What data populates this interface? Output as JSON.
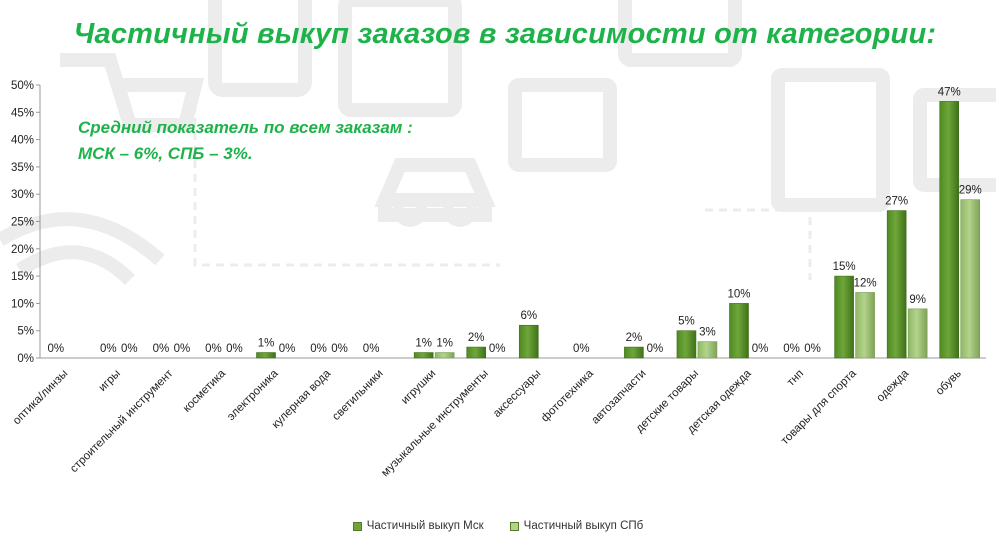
{
  "chart_data": {
    "type": "bar",
    "title": "Частичный выкуп заказов в зависимости от категории:",
    "annotation": [
      "Средний показатель по всем заказам :",
      "МСК – 6%, СПБ – 3%."
    ],
    "categories": [
      "оптика/линзы",
      "игры",
      "строительный инструмент",
      "косметика",
      "электроника",
      "кулерная вода",
      "светильники",
      "игрушки",
      "музыкальные инструменты",
      "аксессуары",
      "фототехника",
      "автозапчасти",
      "детские товары",
      "детская одежда",
      "тнп",
      "товары для спорта",
      "одежда",
      "обувь"
    ],
    "series": [
      {
        "name": "Частичный выкуп Мск",
        "values": [
          0,
          0,
          0,
          0,
          1,
          0,
          0,
          1,
          2,
          6,
          0,
          2,
          5,
          10,
          0,
          15,
          27,
          47
        ],
        "color": "#6fa63a"
      },
      {
        "name": "Частичный выкуп СПб",
        "values": [
          null,
          0,
          0,
          0,
          0,
          0,
          null,
          1,
          0,
          null,
          null,
          0,
          3,
          0,
          0,
          12,
          9,
          29
        ],
        "color": "#b3d38c"
      }
    ],
    "data_labels": {
      "msk": [
        "0%",
        "0%",
        "0%",
        "0%",
        "1%",
        "0%",
        "0%",
        "1%",
        "2%",
        "6%",
        "0%",
        "2%",
        "5%",
        "10%",
        "0%",
        "15%",
        "27%",
        "47%"
      ],
      "spb": [
        "",
        "0%",
        "0%",
        "0%",
        "0%",
        "0%",
        "",
        "1%",
        "0%",
        "",
        "",
        "0%",
        "3%",
        "0%",
        "0%",
        "12%",
        "9%",
        "29%"
      ]
    },
    "yticks": [
      "0%",
      "5%",
      "10%",
      "15%",
      "20%",
      "25%",
      "30%",
      "35%",
      "40%",
      "45%",
      "50%"
    ],
    "ylim": [
      0,
      50
    ],
    "grid": false,
    "legend_position": "bottom"
  },
  "colors": {
    "title": "#1db34a",
    "msk": "#6fa63a",
    "spb": "#b3d38c",
    "decor": "#e9e9e9"
  }
}
